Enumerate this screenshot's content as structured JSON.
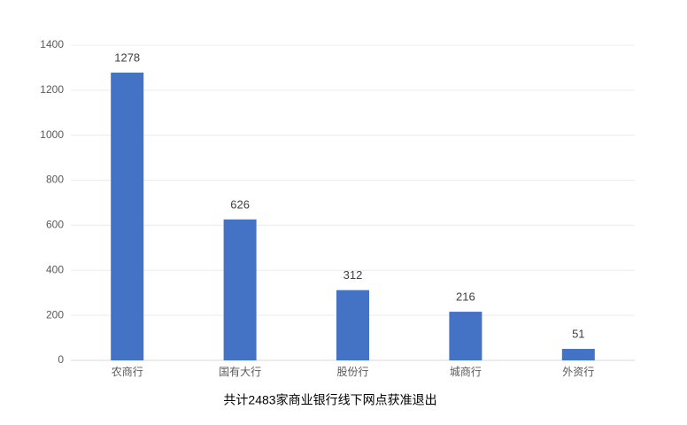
{
  "chart_data": {
    "type": "bar",
    "title": "共计2483家商业银行线下网点获准退出",
    "categories": [
      "农商行",
      "国有大行",
      "股份行",
      "城商行",
      "外资行"
    ],
    "values": [
      1278,
      626,
      312,
      216,
      51
    ],
    "color": "#4472c4",
    "ylim": [
      0,
      1400
    ],
    "yticks": [
      0,
      200,
      400,
      600,
      800,
      1000,
      1200,
      1400
    ],
    "grid": true
  }
}
